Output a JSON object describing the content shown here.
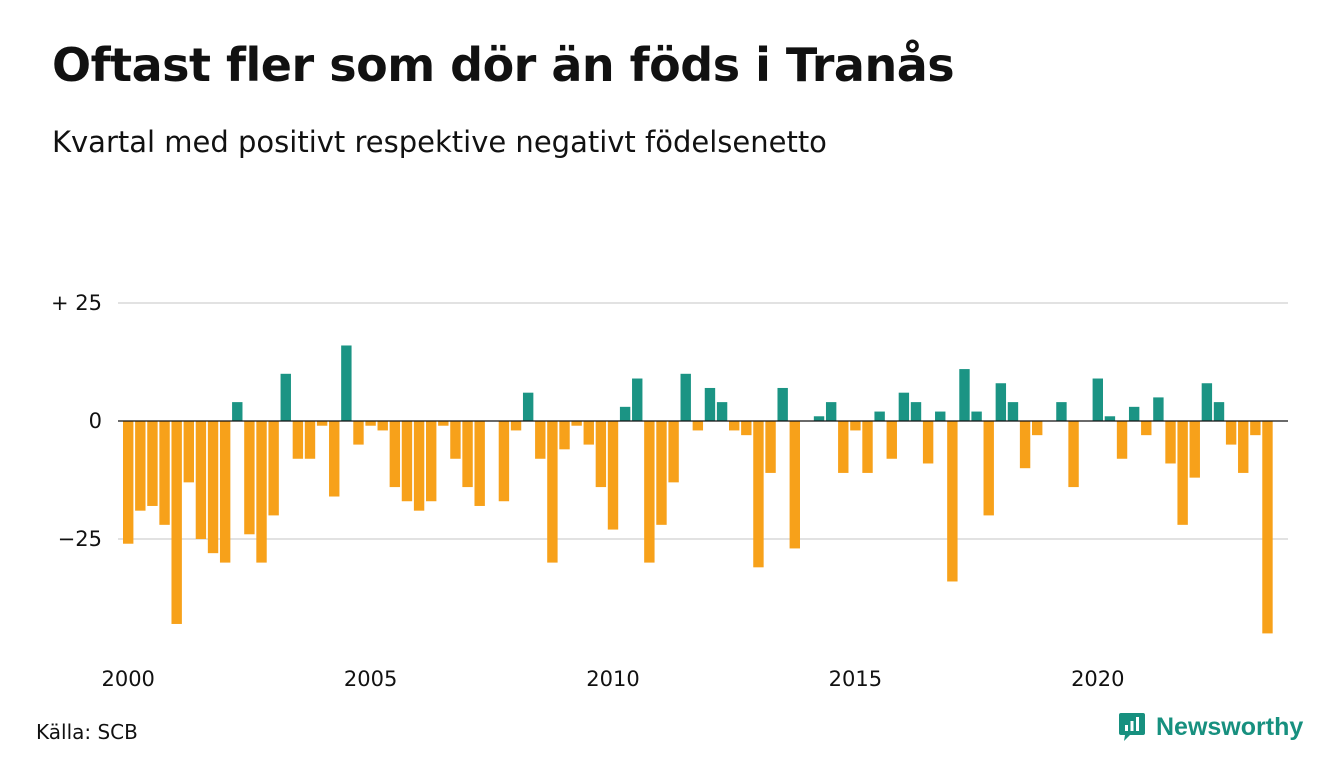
{
  "title": "Oftast fler som dör än föds i Tranås",
  "subtitle": "Kvartal med positivt respektive negativt födelsenetto",
  "source": "Källa: SCB",
  "brand": "Newsworthy",
  "chart_data": {
    "type": "bar",
    "ylim": [
      -47,
      30
    ],
    "yticks": [
      {
        "value": 25,
        "label": "+ 25"
      },
      {
        "value": 0,
        "label": "0"
      },
      {
        "value": -25,
        "label": "−25"
      }
    ],
    "xticks": [
      {
        "value": 2000,
        "label": "2000"
      },
      {
        "value": 2005,
        "label": "2005"
      },
      {
        "value": 2010,
        "label": "2010"
      },
      {
        "value": 2015,
        "label": "2015"
      },
      {
        "value": 2020,
        "label": "2020"
      }
    ],
    "x_start": 2000,
    "periods_per_year": 4,
    "colors": {
      "positive": "#1b9484",
      "negative": "#f7a11a"
    },
    "grid": true,
    "values": [
      -26,
      -19,
      -18,
      -22,
      -43,
      -13,
      -25,
      -28,
      -30,
      4,
      -24,
      -30,
      -20,
      10,
      -8,
      -8,
      -1,
      -16,
      16,
      -5,
      -1,
      -2,
      -14,
      -17,
      -19,
      -17,
      -1,
      -8,
      -14,
      -18,
      0,
      -17,
      -2,
      6,
      -8,
      -30,
      -6,
      -1,
      -5,
      -14,
      -23,
      3,
      9,
      -30,
      -22,
      -13,
      10,
      -2,
      7,
      4,
      -2,
      -3,
      -31,
      -11,
      7,
      -27,
      0,
      1,
      4,
      -11,
      -2,
      -11,
      2,
      -8,
      6,
      4,
      -9,
      2,
      -34,
      11,
      2,
      -20,
      8,
      4,
      -10,
      -3,
      0,
      4,
      -14,
      0,
      9,
      1,
      -8,
      3,
      -3,
      5,
      -9,
      -22,
      -12,
      8,
      4,
      -5,
      -11,
      -3,
      -45
    ]
  }
}
